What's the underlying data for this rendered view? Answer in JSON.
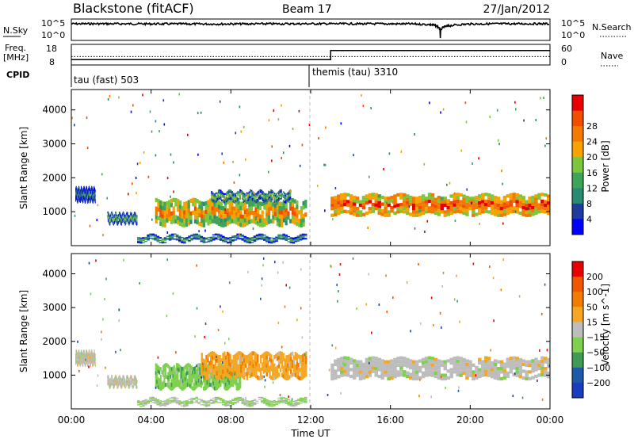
{
  "header": {
    "station": "Blackstone (fitACF)",
    "beam": "Beam 17",
    "date": "27/Jan/2012"
  },
  "noise_panel": {
    "left_label": "N.Sky",
    "right_label": "N.Search",
    "ytick_top": "10^5",
    "ytick_bottom": "10^0"
  },
  "freq_panel": {
    "left_label_1": "Freq.",
    "left_label_2": "[MHz]",
    "left_ticks": [
      "18",
      "8"
    ],
    "right_ticks": [
      "60",
      "0"
    ],
    "right_label": "Nave"
  },
  "cpid": {
    "label": "CPID",
    "segments": [
      "tau (fast) 503",
      "themis (tau) 3310"
    ]
  },
  "colors": {
    "power_scale": [
      "#0000ff",
      "#1e3c9e",
      "#2b8a72",
      "#3fa35a",
      "#7cc63d",
      "#f4a300",
      "#f37a00",
      "#f24d00",
      "#e80000"
    ],
    "velocity_scale": [
      "#e60000",
      "#f25500",
      "#f07d00",
      "#f5a623",
      "#bdbdbd",
      "#7ed14f",
      "#3f9a55",
      "#1f5aa8",
      "#1a3dbd"
    ]
  },
  "chart_data": [
    {
      "type": "line",
      "title": "N.Sky / N.Search",
      "xlabel": "",
      "ylabel": "N.Sky",
      "ylim": [
        "10^0",
        "10^5"
      ],
      "series": [
        {
          "name": "N.Sky",
          "x": [
            "00:00",
            "01:00",
            "02:00",
            "03:00",
            "04:00",
            "05:00",
            "06:00",
            "07:00",
            "08:00",
            "09:00",
            "10:00",
            "11:00",
            "12:00",
            "13:00",
            "14:00",
            "15:00",
            "16:00",
            "17:00",
            "18:00",
            "18:30",
            "19:00",
            "20:00",
            "21:00",
            "22:00",
            "23:00",
            "24:00"
          ],
          "values": [
            20000,
            21000,
            20500,
            20000,
            19500,
            19000,
            18500,
            18000,
            18500,
            19000,
            20000,
            20500,
            21000,
            21000,
            20500,
            20000,
            19500,
            19000,
            12000,
            1,
            6000,
            18000,
            20000,
            20500,
            21000,
            20000
          ]
        }
      ]
    },
    {
      "type": "line",
      "title": "Freq. / Nave",
      "xlabel": "",
      "ylabel": "Freq. [MHz]",
      "ylim": [
        8,
        18
      ],
      "series": [
        {
          "name": "Freq.",
          "x": [
            "00:00",
            "13:00",
            "13:00",
            "24:00"
          ],
          "values": [
            10,
            10,
            16,
            16
          ]
        },
        {
          "name": "Nave",
          "x": [
            "00:00",
            "24:00"
          ],
          "values": [
            12,
            12
          ]
        }
      ]
    },
    {
      "type": "heatmap",
      "title": "",
      "xlabel": "Time UT",
      "ylabel": "Slant Range [km]",
      "xticks": [
        "00:00",
        "04:00",
        "08:00",
        "12:00",
        "16:00",
        "20:00",
        "00:00"
      ],
      "yticks": [
        "1000",
        "2000",
        "3000",
        "4000"
      ],
      "colorbar_label": "Power [dB]",
      "colorbar_ticks": [
        "4",
        "8",
        "12",
        "16",
        "20",
        "24",
        "28"
      ],
      "vmin": 0,
      "vmax": 32,
      "bands": [
        {
          "t0": 0.2,
          "t1": 1.2,
          "range_lo": 1300,
          "range_hi": 1700,
          "value": 6
        },
        {
          "t0": 1.8,
          "t1": 3.3,
          "range_lo": 650,
          "range_hi": 950,
          "value": 9
        },
        {
          "t0": 4.2,
          "t1": 11.8,
          "range_lo": 600,
          "range_hi": 1350,
          "value": 18
        },
        {
          "t0": 7.0,
          "t1": 11.0,
          "range_lo": 1300,
          "range_hi": 1600,
          "value": 10
        },
        {
          "t0": 3.3,
          "t1": 11.8,
          "range_lo": 120,
          "range_hi": 300,
          "value": 8
        },
        {
          "t0": 13.0,
          "t1": 24.0,
          "range_lo": 900,
          "range_hi": 1500,
          "value": 22
        }
      ]
    },
    {
      "type": "heatmap",
      "title": "",
      "xlabel": "Time UT",
      "ylabel": "Slant Range [km]",
      "xticks": [
        "00:00",
        "04:00",
        "08:00",
        "12:00",
        "16:00",
        "20:00",
        "00:00"
      ],
      "yticks": [
        "1000",
        "2000",
        "3000",
        "4000"
      ],
      "colorbar_label": "Velocity [m s^-1]",
      "colorbar_ticks": [
        "200",
        "100",
        "50",
        "15",
        "−15",
        "−50",
        "−100",
        "−200"
      ],
      "vmin": -250,
      "vmax": 250,
      "bands": [
        {
          "t0": 0.2,
          "t1": 1.2,
          "range_lo": 1300,
          "range_hi": 1700,
          "value": 0
        },
        {
          "t0": 1.8,
          "t1": 3.3,
          "range_lo": 650,
          "range_hi": 950,
          "value": 0
        },
        {
          "t0": 4.2,
          "t1": 8.5,
          "range_lo": 600,
          "range_hi": 1300,
          "value": -60
        },
        {
          "t0": 6.5,
          "t1": 11.8,
          "range_lo": 900,
          "range_hi": 1650,
          "value": 60
        },
        {
          "t0": 3.3,
          "t1": 11.8,
          "range_lo": 120,
          "range_hi": 300,
          "value": -30
        },
        {
          "t0": 13.0,
          "t1": 24.0,
          "range_lo": 900,
          "range_hi": 1500,
          "value": 0
        }
      ]
    }
  ]
}
